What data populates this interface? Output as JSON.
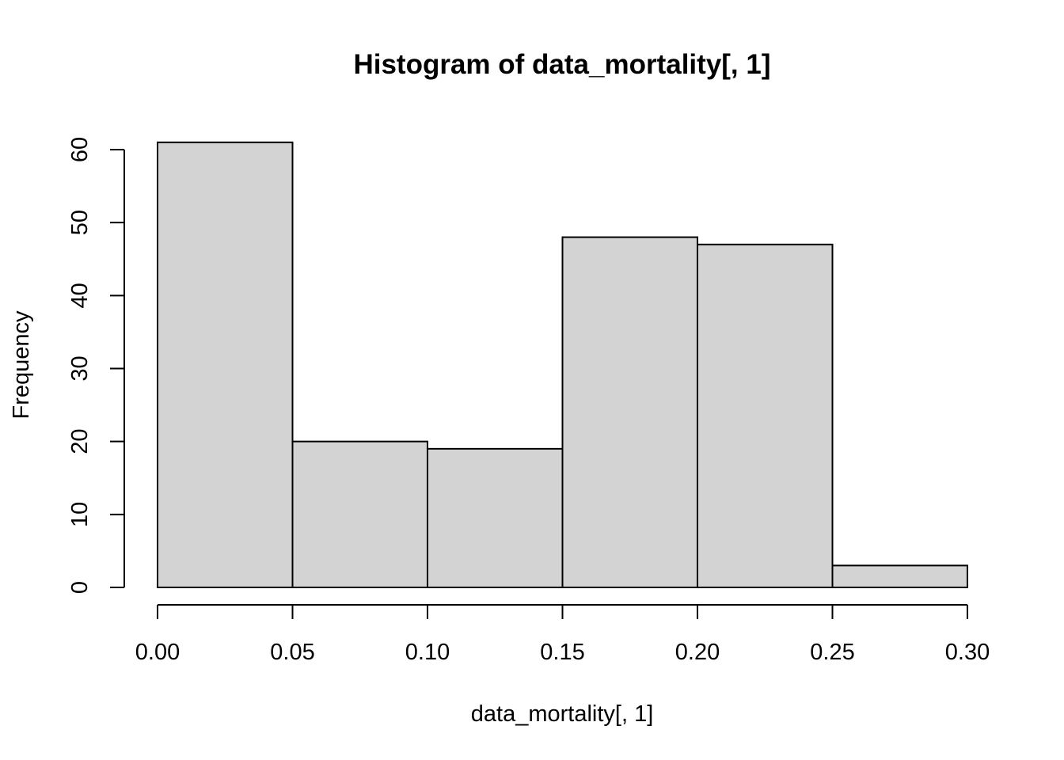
{
  "chart_data": {
    "type": "bar",
    "title": "Histogram of data_mortality[, 1]",
    "xlabel": "data_mortality[, 1]",
    "ylabel": "Frequency",
    "bins": [
      {
        "from": 0.0,
        "to": 0.05,
        "count": 61
      },
      {
        "from": 0.05,
        "to": 0.1,
        "count": 20
      },
      {
        "from": 0.1,
        "to": 0.15,
        "count": 19
      },
      {
        "from": 0.15,
        "to": 0.2,
        "count": 48
      },
      {
        "from": 0.2,
        "to": 0.25,
        "count": 47
      },
      {
        "from": 0.25,
        "to": 0.3,
        "count": 3
      }
    ],
    "x_ticks": [
      "0.00",
      "0.05",
      "0.10",
      "0.15",
      "0.20",
      "0.25",
      "0.30"
    ],
    "y_ticks": [
      "0",
      "10",
      "20",
      "30",
      "40",
      "50",
      "60"
    ],
    "xlim": [
      0,
      0.3
    ],
    "ylim": [
      0,
      60
    ],
    "grid": false,
    "bar_color": "#d3d3d3",
    "edge_color": "#000000"
  }
}
